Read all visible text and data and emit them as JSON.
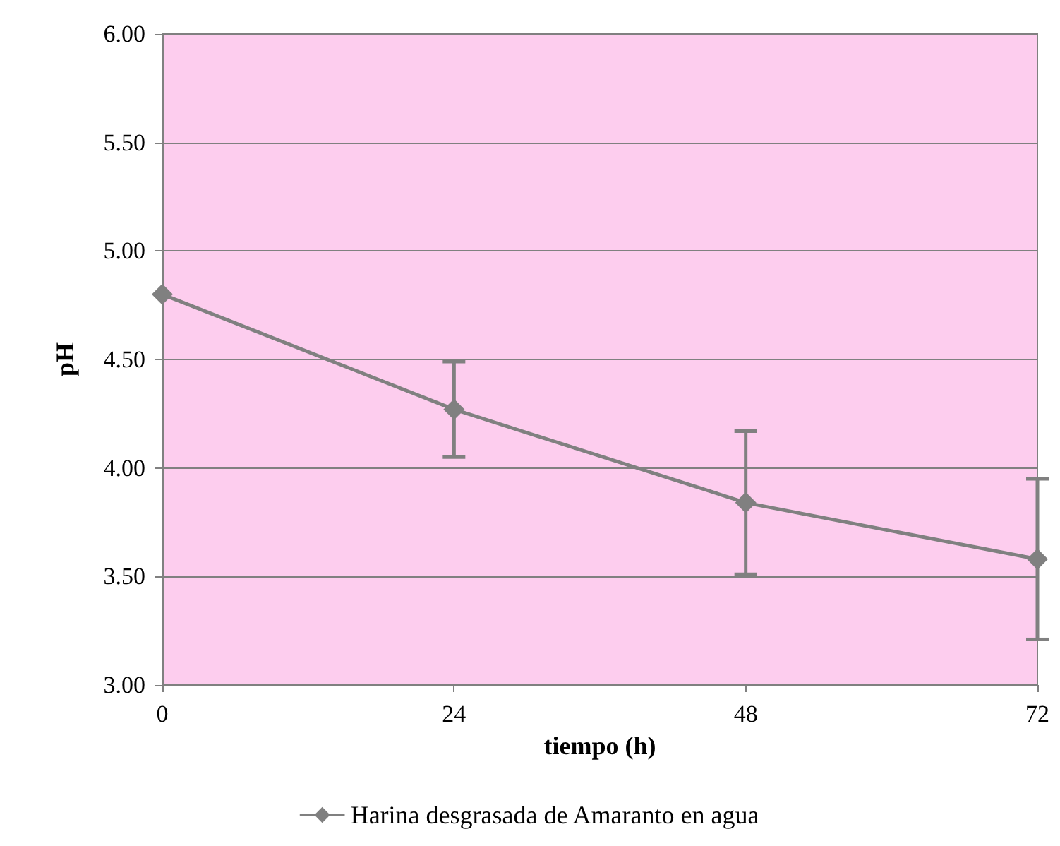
{
  "chart_data": {
    "type": "line",
    "xlabel": "tiempo (h)",
    "ylabel": "pH",
    "x": [
      0,
      24,
      48,
      72
    ],
    "series": [
      {
        "name": "Harina desgrasada de Amaranto en agua",
        "color": "#808080",
        "values": [
          4.8,
          4.27,
          3.84,
          3.58
        ],
        "errors": [
          null,
          0.22,
          0.33,
          0.37
        ]
      }
    ],
    "xlim": [
      0,
      72
    ],
    "xticks": [
      0,
      24,
      48,
      72
    ],
    "ylim": [
      3,
      6
    ],
    "yticks": [
      {
        "value": 3,
        "label": "3.00"
      },
      {
        "value": 3.5,
        "label": "3.50"
      },
      {
        "value": 4,
        "label": "4.00"
      },
      {
        "value": 4.5,
        "label": "4.50"
      },
      {
        "value": 5,
        "label": "5.00"
      },
      {
        "value": 5.5,
        "label": "5.50"
      },
      {
        "value": 6,
        "label": "6.00"
      }
    ],
    "grid": "y",
    "legend": "bottom",
    "marker": "diamond",
    "line_style": "solid"
  }
}
